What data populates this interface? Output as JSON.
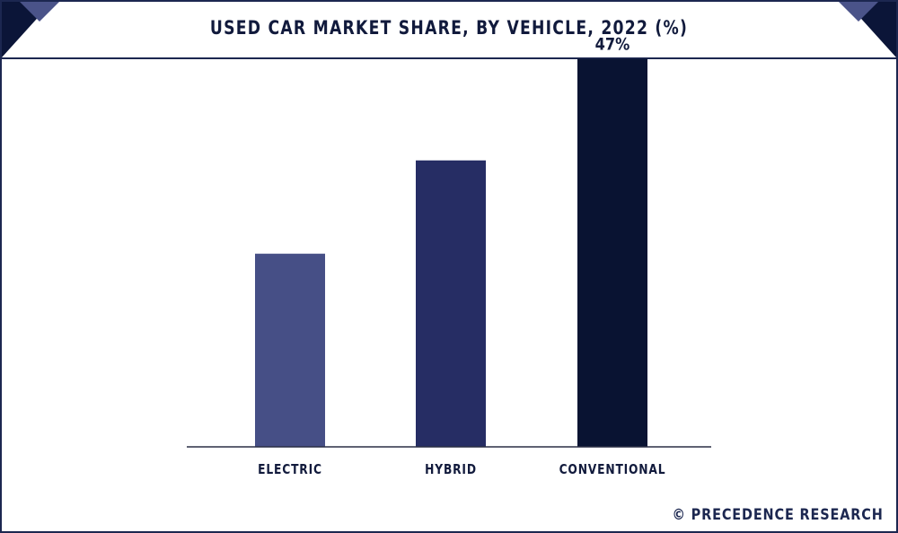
{
  "header": {
    "title": "USED CAR MARKET SHARE, BY VEHICLE, 2022 (%)"
  },
  "footer": {
    "brand": "© PRECEDENCE RESEARCH"
  },
  "colors": {
    "bar_electric": "#464f86",
    "bar_hybrid": "#262d64",
    "bar_conventional": "#091332",
    "frame": "#1c2750",
    "corner_dark": "#0b1538",
    "corner_light": "#4a5389"
  },
  "chart_data": {
    "type": "bar",
    "title": "USED CAR MARKET SHARE, BY VEHICLE, 2022 (%)",
    "categories": [
      "ELECTRIC",
      "HYBRID",
      "CONVENTIONAL"
    ],
    "values": [
      23.4,
      34.7,
      47
    ],
    "data_labels": [
      "",
      "",
      "47%"
    ],
    "ylim": [
      0,
      50
    ],
    "grid": false,
    "legend": "none"
  }
}
